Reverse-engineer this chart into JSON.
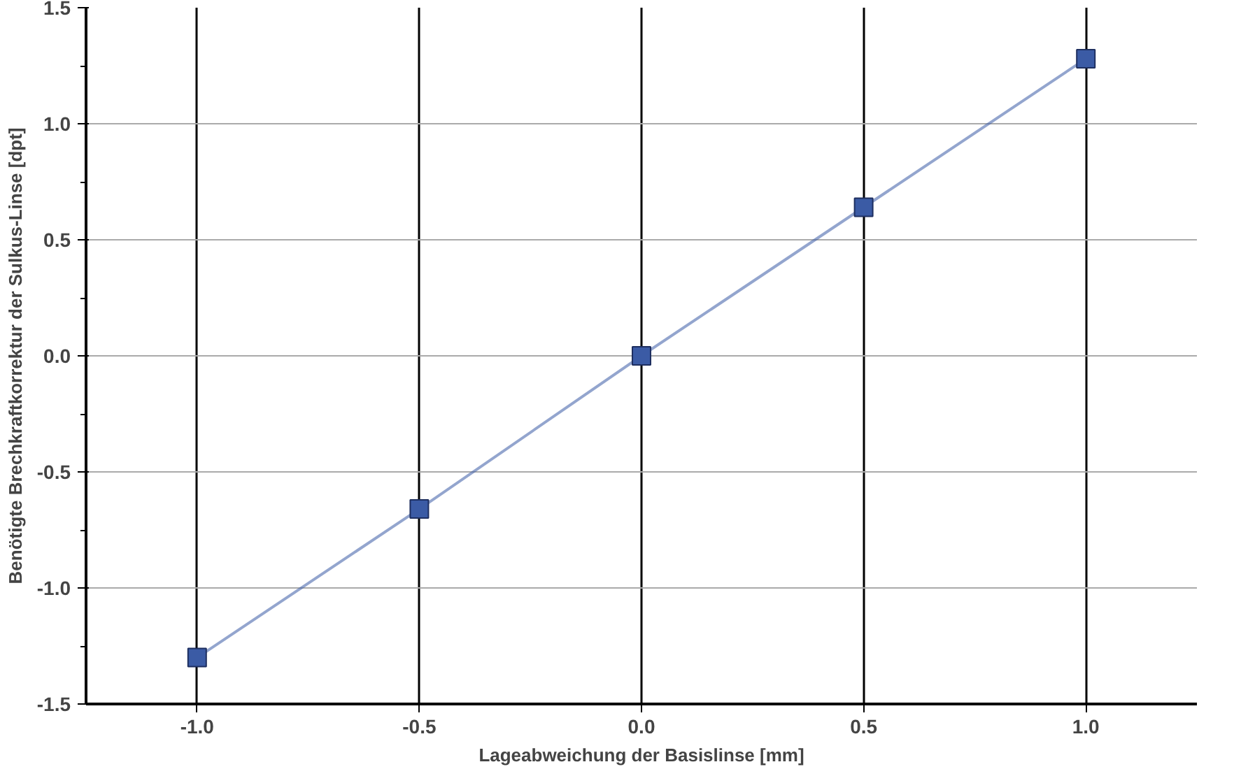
{
  "chart_data": {
    "type": "line",
    "xlabel": "Lageabweichung der Basislinse [mm]",
    "ylabel": "Benötigte Brechkraftkorrektur der Sulkus-Linse [dpt]",
    "x": [
      -1.0,
      -0.5,
      0.0,
      0.5,
      1.0
    ],
    "series": [
      {
        "color": "#3b5ba5",
        "values": [
          -1.3,
          -0.66,
          0.0,
          0.64,
          1.28
        ]
      }
    ],
    "xlim": [
      -1.25,
      1.25
    ],
    "ylim": [
      -1.5,
      1.5
    ],
    "xticks": [
      {
        "value": -1.0,
        "label": "-1.0"
      },
      {
        "value": -0.5,
        "label": "-0.5"
      },
      {
        "value": 0.0,
        "label": "0.0"
      },
      {
        "value": 0.5,
        "label": "0.5"
      },
      {
        "value": 1.0,
        "label": "1.0"
      }
    ],
    "yticks": [
      {
        "value": -1.5,
        "label": "-1.5"
      },
      {
        "value": -1.0,
        "label": "-1.0"
      },
      {
        "value": -0.5,
        "label": "-0.5"
      },
      {
        "value": 0.0,
        "label": "0.0"
      },
      {
        "value": 0.5,
        "label": "0.5"
      },
      {
        "value": 1.0,
        "label": "1.0"
      },
      {
        "value": 1.5,
        "label": "1.5"
      }
    ],
    "grid": true,
    "marker": "square",
    "line_style": "solid"
  }
}
